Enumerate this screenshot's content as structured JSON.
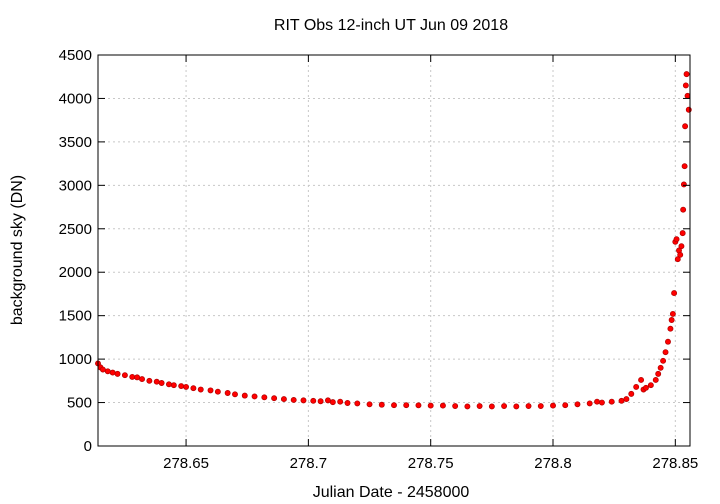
{
  "chart_data": {
    "type": "scatter",
    "title": "RIT Obs 12-inch UT Jun 09 2018",
    "xlabel": "Julian Date - 2458000",
    "ylabel": "background sky (DN)",
    "xlim": [
      278.614,
      278.856
    ],
    "ylim": [
      0,
      4500
    ],
    "xticks": [
      278.65,
      278.7,
      278.75,
      278.8,
      278.85
    ],
    "xtick_labels": [
      "278.65",
      "278.7",
      "278.75",
      "278.8",
      "278.85"
    ],
    "yticks": [
      0,
      500,
      1000,
      1500,
      2000,
      2500,
      3000,
      3500,
      4000,
      4500
    ],
    "ytick_labels": [
      "0",
      "500",
      "1000",
      "1500",
      "2000",
      "2500",
      "3000",
      "3500",
      "4000",
      "4500"
    ],
    "grid": true,
    "marker_color": "#ff0000",
    "marker_edge_color": "#b00000",
    "series": [
      {
        "name": "",
        "points": [
          [
            278.614,
            950
          ],
          [
            278.615,
            905
          ],
          [
            278.616,
            880
          ],
          [
            278.618,
            860
          ],
          [
            278.62,
            845
          ],
          [
            278.622,
            830
          ],
          [
            278.625,
            815
          ],
          [
            278.628,
            795
          ],
          [
            278.63,
            790
          ],
          [
            278.632,
            770
          ],
          [
            278.635,
            750
          ],
          [
            278.638,
            740
          ],
          [
            278.64,
            725
          ],
          [
            278.643,
            710
          ],
          [
            278.645,
            700
          ],
          [
            278.648,
            690
          ],
          [
            278.65,
            680
          ],
          [
            278.653,
            665
          ],
          [
            278.656,
            650
          ],
          [
            278.66,
            640
          ],
          [
            278.663,
            625
          ],
          [
            278.667,
            610
          ],
          [
            278.67,
            595
          ],
          [
            278.674,
            580
          ],
          [
            278.678,
            570
          ],
          [
            278.682,
            560
          ],
          [
            278.686,
            550
          ],
          [
            278.69,
            540
          ],
          [
            278.694,
            530
          ],
          [
            278.698,
            525
          ],
          [
            278.702,
            520
          ],
          [
            278.705,
            515
          ],
          [
            278.708,
            525
          ],
          [
            278.71,
            505
          ],
          [
            278.713,
            510
          ],
          [
            278.716,
            495
          ],
          [
            278.72,
            490
          ],
          [
            278.725,
            480
          ],
          [
            278.73,
            475
          ],
          [
            278.735,
            470
          ],
          [
            278.74,
            470
          ],
          [
            278.745,
            468
          ],
          [
            278.75,
            465
          ],
          [
            278.755,
            465
          ],
          [
            278.76,
            460
          ],
          [
            278.765,
            455
          ],
          [
            278.77,
            460
          ],
          [
            278.775,
            455
          ],
          [
            278.78,
            460
          ],
          [
            278.785,
            455
          ],
          [
            278.79,
            460
          ],
          [
            278.795,
            460
          ],
          [
            278.8,
            465
          ],
          [
            278.805,
            470
          ],
          [
            278.81,
            480
          ],
          [
            278.815,
            490
          ],
          [
            278.818,
            510
          ],
          [
            278.82,
            500
          ],
          [
            278.824,
            510
          ],
          [
            278.828,
            520
          ],
          [
            278.83,
            540
          ],
          [
            278.832,
            600
          ],
          [
            278.834,
            680
          ],
          [
            278.836,
            760
          ],
          [
            278.837,
            650
          ],
          [
            278.838,
            670
          ],
          [
            278.84,
            700
          ],
          [
            278.842,
            760
          ],
          [
            278.843,
            830
          ],
          [
            278.844,
            900
          ],
          [
            278.845,
            980
          ],
          [
            278.846,
            1080
          ],
          [
            278.847,
            1200
          ],
          [
            278.848,
            1350
          ],
          [
            278.8485,
            1450
          ],
          [
            278.849,
            1520
          ],
          [
            278.8495,
            1760
          ],
          [
            278.85,
            2350
          ],
          [
            278.8505,
            2380
          ],
          [
            278.851,
            2150
          ],
          [
            278.8515,
            2250
          ],
          [
            278.852,
            2200
          ],
          [
            278.8525,
            2300
          ],
          [
            278.853,
            2450
          ],
          [
            278.8532,
            2720
          ],
          [
            278.8535,
            3010
          ],
          [
            278.8538,
            3220
          ],
          [
            278.854,
            3680
          ],
          [
            278.8543,
            4150
          ],
          [
            278.8546,
            4280
          ],
          [
            278.855,
            4030
          ],
          [
            278.8555,
            3870
          ]
        ]
      }
    ]
  }
}
